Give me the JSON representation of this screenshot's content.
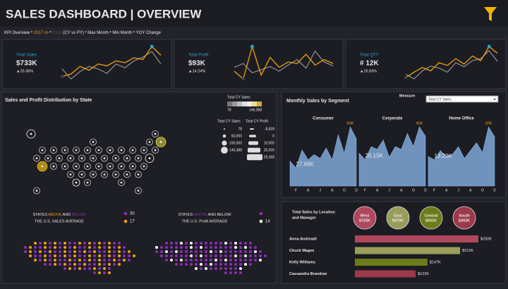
{
  "header": {
    "title": "SALES DASHBOARD | OVERVIEW"
  },
  "legend": {
    "kpi": "KPI Overview",
    "cy": "2017 vs",
    "py": "2016",
    "compare": "(CY vs PY)",
    "max": "Max Month",
    "min": "Min Month",
    "yoy": "YOY Change"
  },
  "kpis": [
    {
      "title": "Total Sales",
      "value": "$733K",
      "change": "▲20.36%",
      "cy": [
        30,
        34,
        46,
        40,
        50,
        47,
        55,
        52,
        60,
        57,
        78,
        64
      ],
      "py": [
        42,
        26,
        38,
        46,
        42,
        35,
        50,
        44,
        55,
        61,
        70,
        50
      ]
    },
    {
      "title": "Total Profit",
      "value": "$93K",
      "change": "▲14.24%",
      "cy": [
        40,
        30,
        72,
        35,
        58,
        45,
        52,
        50,
        62,
        48,
        55,
        50
      ],
      "py": [
        45,
        50,
        38,
        42,
        46,
        40,
        48,
        55,
        44,
        66,
        52,
        47
      ]
    },
    {
      "title": "Total QTY",
      "value": "# 12K",
      "change": "▲26.83%",
      "cy": [
        30,
        38,
        45,
        40,
        52,
        48,
        58,
        50,
        62,
        55,
        76,
        66
      ],
      "py": [
        35,
        28,
        40,
        47,
        44,
        38,
        52,
        46,
        55,
        58,
        70,
        54
      ]
    }
  ],
  "map": {
    "title": "Sales and Profit Distribution by State",
    "color_legend_title": "Total CY Sales",
    "color_min": "78",
    "color_max": "146,388",
    "size_titles": [
      "Total CY Sales",
      "Total CY Profit"
    ],
    "sales_sizes": [
      "78",
      "50,000",
      "100,000",
      "146,388"
    ],
    "profit_sizes": [
      "-8,839",
      "0",
      "10,000",
      "20,000",
      "29,368"
    ]
  },
  "averages": [
    {
      "pre": "STATES ",
      "above": "ABOVE",
      "mid": " AND ",
      "below": "BELOW",
      "line2": "THE U.S. SALES AVERAGE",
      "counts": [
        "30",
        "17"
      ]
    },
    {
      "pre": "STATES ",
      "above": "ABOVE",
      "mid": " AND ",
      "below": "BELOW",
      "line2": "THE U.S. Profit AVERAGE",
      "counts": [
        "14"
      ]
    }
  ],
  "segments": {
    "title": "Monthly Sales by Segment",
    "measure_label": "Measure",
    "measure_value": "Total CY Sales",
    "months": [
      null,
      "F",
      null,
      "A",
      null,
      "J",
      null,
      "A",
      null,
      "O",
      null,
      "D"
    ],
    "series": [
      {
        "name": "Consumer",
        "color": "#6f93bd",
        "values": [
          38,
          27.66,
          55,
          40,
          48,
          42,
          58,
          40,
          78,
          50,
          90,
          72
        ],
        "value_labels": [
          null,
          "27.66K",
          null,
          null,
          null,
          null,
          null,
          null,
          null,
          null,
          "90K",
          null
        ]
      },
      {
        "name": "Corporate",
        "color": "#6f93bd",
        "values": [
          25,
          20.15,
          30,
          28,
          35,
          22,
          30,
          28,
          40,
          30,
          45,
          38
        ],
        "value_labels": [
          null,
          "20.15K",
          null,
          null,
          null,
          null,
          null,
          null,
          null,
          null,
          "45K",
          null
        ]
      },
      {
        "name": "Home Office",
        "color": "#6f93bd",
        "values": [
          15,
          13.29,
          18,
          15,
          16,
          20,
          14,
          18,
          22,
          17,
          30,
          25
        ],
        "value_labels": [
          null,
          "13.29K",
          null,
          null,
          null,
          null,
          null,
          null,
          null,
          null,
          "30K",
          null
        ]
      }
    ]
  },
  "location": {
    "title_lines": [
      "Total Sales by Location",
      "and Manager"
    ],
    "regions": [
      {
        "name": "West",
        "value": "$725K",
        "color": "#b0475c"
      },
      {
        "name": "East",
        "value": "$679K",
        "color": "#9a9c5a"
      },
      {
        "name": "Central",
        "value": "$501K",
        "color": "#6b7d1a"
      },
      {
        "name": "South",
        "value": "$392K",
        "color": "#9c3a4c"
      }
    ],
    "managers": [
      {
        "name": "Anna Andreadi",
        "value": 250,
        "label": "$250K",
        "color": "#b0475c"
      },
      {
        "name": "Chuck Magee",
        "value": 213,
        "label": "$213K",
        "color": "#9a9c5a"
      },
      {
        "name": "Kelly Williams",
        "value": 147,
        "label": "$147K",
        "color": "#6b7d1a"
      },
      {
        "name": "Cassandra Brandow",
        "value": 123,
        "label": "$123K",
        "color": "#9c3a4c"
      }
    ]
  }
}
